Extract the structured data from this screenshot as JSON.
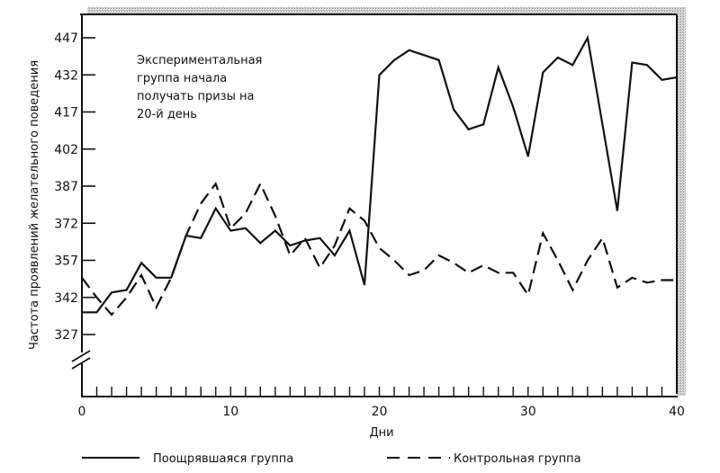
{
  "chart_data": {
    "type": "line",
    "title": "",
    "xlabel": "Дни",
    "ylabel": "Частота проявлений желательного поведения",
    "xlim": [
      0,
      40
    ],
    "ylim": [
      315,
      452
    ],
    "x_ticks": [
      0,
      10,
      20,
      30,
      40
    ],
    "x_minor_step": 1,
    "y_ticks": [
      327,
      342,
      357,
      372,
      387,
      402,
      417,
      432,
      447
    ],
    "y_axis_break": true,
    "grid": false,
    "legend_position": "bottom",
    "x": [
      0,
      1,
      2,
      3,
      4,
      5,
      6,
      7,
      8,
      9,
      10,
      11,
      12,
      13,
      14,
      15,
      16,
      17,
      18,
      19,
      20,
      21,
      22,
      23,
      24,
      25,
      26,
      27,
      28,
      29,
      30,
      31,
      32,
      33,
      34,
      35,
      36,
      37,
      38,
      39,
      40
    ],
    "series": [
      {
        "name": "Поощрявшаяся группа",
        "style": "solid",
        "values": [
          336,
          336,
          344,
          345,
          356,
          350,
          350,
          367,
          366,
          378,
          369,
          370,
          364,
          369,
          363,
          365,
          366,
          359,
          369,
          347,
          432,
          438,
          442,
          440,
          438,
          418,
          410,
          412,
          435,
          419,
          399,
          433,
          439,
          436,
          447,
          412,
          377,
          437,
          436,
          430,
          431
        ]
      },
      {
        "name": "Контрольная группа",
        "style": "dashed",
        "values": [
          350,
          342,
          335,
          342,
          351,
          338,
          350,
          367,
          380,
          388,
          370,
          376,
          388,
          375,
          359,
          366,
          354,
          363,
          378,
          373,
          362,
          357,
          351,
          353,
          359,
          356,
          352,
          355,
          352,
          352,
          343,
          368,
          357,
          345,
          357,
          366,
          346,
          350,
          348,
          349,
          349
        ]
      }
    ],
    "annotations": [
      {
        "lines": [
          "Экспериментальная",
          "группа начала",
          "получать призы на",
          "20-й день"
        ]
      }
    ]
  },
  "legend": {
    "items": [
      {
        "label": "Поощрявшаяся группа",
        "style": "solid"
      },
      {
        "label": "Контрольная группа",
        "style": "dashed"
      }
    ]
  },
  "colors": {
    "line": "#111111",
    "frame_shadow": "#b8b8b8",
    "background": "#ffffff"
  }
}
